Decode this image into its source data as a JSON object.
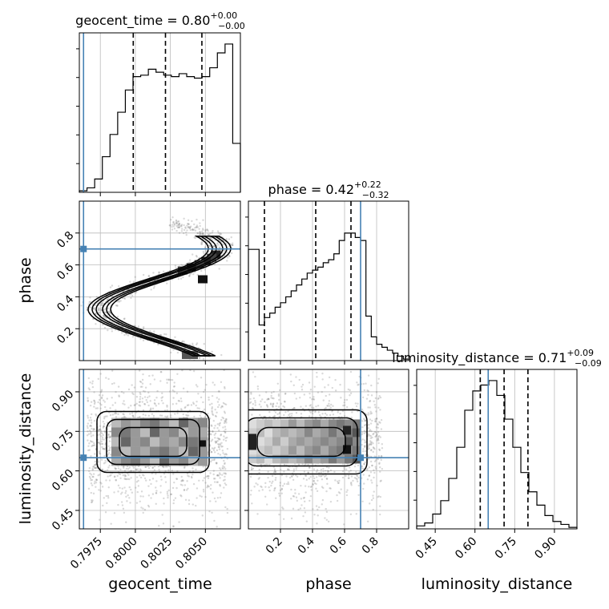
{
  "chart_data": {
    "type": "corner",
    "grid": true,
    "parameters": [
      "geocent_time",
      "phase",
      "luminosity_distance"
    ],
    "axis_labels": {
      "geocent_time": "geocent_time",
      "phase": "phase",
      "luminosity_distance": "luminosity_distance"
    },
    "titles": {
      "geocent_time": {
        "name": "geocent_time",
        "median": "0.80",
        "plus": "+0.00",
        "minus": "−0.00"
      },
      "phase": {
        "name": "phase",
        "median": "0.42",
        "plus": "+0.22",
        "minus": "−0.32"
      },
      "luminosity_distance": {
        "name": "luminosity_distance",
        "median": "0.71",
        "plus": "+0.09",
        "minus": "−0.09"
      }
    },
    "ranges": {
      "geocent_time": [
        0.796,
        0.8075
      ],
      "phase": [
        0.0,
        1.0
      ],
      "luminosity_distance": [
        0.38,
        0.985
      ]
    },
    "ticks": {
      "geocent_time": [
        {
          "v": 0.7975,
          "label": "0.7975"
        },
        {
          "v": 0.8,
          "label": "0.8000"
        },
        {
          "v": 0.8025,
          "label": "0.8025"
        },
        {
          "v": 0.805,
          "label": "0.8050"
        }
      ],
      "phase": [
        {
          "v": 0.2,
          "label": "0.2"
        },
        {
          "v": 0.4,
          "label": "0.4"
        },
        {
          "v": 0.6,
          "label": "0.6"
        },
        {
          "v": 0.8,
          "label": "0.8"
        }
      ],
      "luminosity_distance": [
        {
          "v": 0.45,
          "label": "0.45"
        },
        {
          "v": 0.6,
          "label": "0.60"
        },
        {
          "v": 0.75,
          "label": "0.75"
        },
        {
          "v": 0.9,
          "label": "0.90"
        }
      ]
    },
    "truths": {
      "geocent_time": 0.7963,
      "phase": 0.7,
      "luminosity_distance": 0.65
    },
    "quantiles": {
      "geocent_time": [
        0.79985,
        0.80215,
        0.80475
      ],
      "phase": [
        0.1,
        0.42,
        0.64
      ],
      "luminosity_distance": [
        0.62,
        0.71,
        0.8
      ]
    },
    "histograms": {
      "geocent_time": [
        0.01,
        0.03,
        0.09,
        0.24,
        0.39,
        0.54,
        0.69,
        0.78,
        0.79,
        0.83,
        0.81,
        0.79,
        0.78,
        0.8,
        0.78,
        0.77,
        0.78,
        0.84,
        0.94,
        1.0,
        0.33
      ],
      "phase": [
        0.75,
        0.75,
        0.24,
        0.29,
        0.32,
        0.36,
        0.39,
        0.43,
        0.47,
        0.51,
        0.55,
        0.59,
        0.61,
        0.63,
        0.66,
        0.68,
        0.72,
        0.81,
        0.86,
        0.86,
        0.83,
        0.81,
        0.3,
        0.16,
        0.11,
        0.09,
        0.07,
        0.05,
        0.03,
        0.01
      ],
      "luminosity_distance": [
        0.02,
        0.04,
        0.1,
        0.19,
        0.34,
        0.55,
        0.8,
        0.93,
        0.97,
        1.0,
        0.9,
        0.74,
        0.55,
        0.38,
        0.25,
        0.16,
        0.09,
        0.05,
        0.03,
        0.01
      ]
    }
  }
}
